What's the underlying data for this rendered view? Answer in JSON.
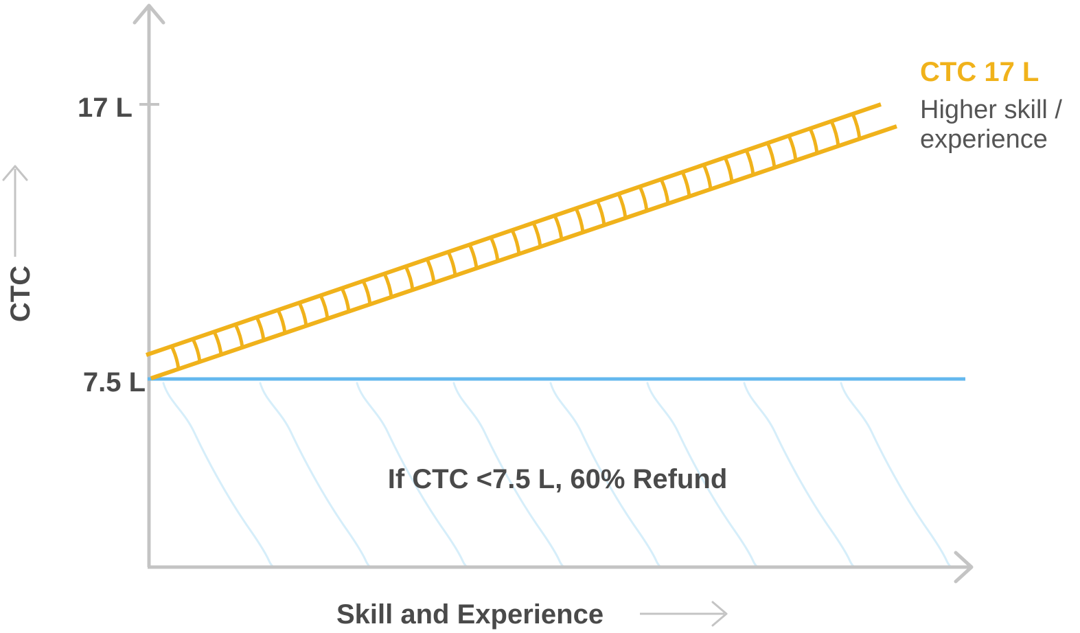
{
  "y_axis": {
    "title": "CTC",
    "ticks": [
      {
        "label": "17 L",
        "value": 17
      },
      {
        "label": "7.5 L",
        "value": 7.5
      }
    ]
  },
  "x_axis": {
    "title": "Skill and Experience"
  },
  "band": {
    "title": "CTC 17 L",
    "subtitle_line1": "Higher skill /",
    "subtitle_line2": "experience",
    "from_value": 7.5,
    "to_value": 17
  },
  "refund": {
    "text": "If CTC <7.5 L, 60% Refund",
    "threshold_value": 7.5
  },
  "colors": {
    "axis": "#c4c4c4",
    "band": "#f0b21b",
    "threshold": "#64b8ee",
    "refund_hatch": "#d6eefa",
    "text": "#4a4a4a"
  }
}
